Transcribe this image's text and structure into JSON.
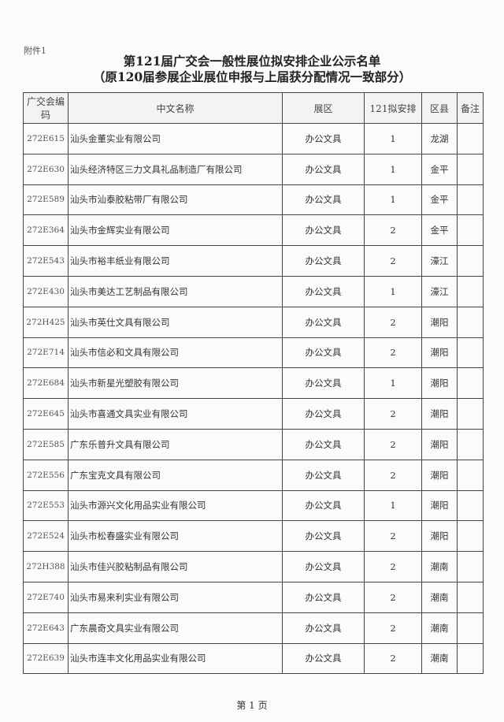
{
  "attachment": "附件1",
  "title": "第121届广交会一般性展位拟安排企业公示名单",
  "subtitle": "（原120届参展企业展位申报与上届获分配情况一致部分）",
  "headers": {
    "code": "广交会编码",
    "name": "中文名称",
    "zone": "展区",
    "plan": "121拟安排",
    "district": "区县",
    "note": "备注"
  },
  "rows": [
    {
      "code": "272E615",
      "name": "汕头金董实业有限公司",
      "zone": "办公文具",
      "plan": "1",
      "district": "龙湖",
      "note": ""
    },
    {
      "code": "272E630",
      "name": "汕头经济特区三力文具礼品制造厂有限公司",
      "zone": "办公文具",
      "plan": "1",
      "district": "金平",
      "note": ""
    },
    {
      "code": "272E589",
      "name": "汕头市汕泰胶粘带厂有限公司",
      "zone": "办公文具",
      "plan": "1",
      "district": "金平",
      "note": ""
    },
    {
      "code": "272E364",
      "name": "汕头市金辉实业有限公司",
      "zone": "办公文具",
      "plan": "2",
      "district": "金平",
      "note": ""
    },
    {
      "code": "272E543",
      "name": "汕头市裕丰纸业有限公司",
      "zone": "办公文具",
      "plan": "2",
      "district": "濠江",
      "note": ""
    },
    {
      "code": "272E430",
      "name": "汕头市美达工艺制品有限公司",
      "zone": "办公文具",
      "plan": "1",
      "district": "濠江",
      "note": ""
    },
    {
      "code": "272H425",
      "name": "汕头市英仕文具有限公司",
      "zone": "办公文具",
      "plan": "2",
      "district": "潮阳",
      "note": ""
    },
    {
      "code": "272E714",
      "name": "汕头市信必和文具有限公司",
      "zone": "办公文具",
      "plan": "2",
      "district": "潮阳",
      "note": ""
    },
    {
      "code": "272E684",
      "name": "汕头市新星光塑胶有限公司",
      "zone": "办公文具",
      "plan": "1",
      "district": "潮阳",
      "note": ""
    },
    {
      "code": "272E645",
      "name": "汕头市喜通文具实业有限公司",
      "zone": "办公文具",
      "plan": "2",
      "district": "潮阳",
      "note": ""
    },
    {
      "code": "272E585",
      "name": "广东乐普升文具有限公司",
      "zone": "办公文具",
      "plan": "2",
      "district": "潮阳",
      "note": ""
    },
    {
      "code": "272E556",
      "name": "广东宝克文具有限公司",
      "zone": "办公文具",
      "plan": "2",
      "district": "潮阳",
      "note": ""
    },
    {
      "code": "272E553",
      "name": "汕头市源兴文化用品实业有限公司",
      "zone": "办公文具",
      "plan": "1",
      "district": "潮阳",
      "note": ""
    },
    {
      "code": "272E524",
      "name": "汕头市松春盛实业有限公司",
      "zone": "办公文具",
      "plan": "2",
      "district": "潮阳",
      "note": ""
    },
    {
      "code": "272H388",
      "name": "汕头市佳兴胶粘制品有限公司",
      "zone": "办公文具",
      "plan": "2",
      "district": "潮南",
      "note": ""
    },
    {
      "code": "272E740",
      "name": "汕头市易来利实业有限公司",
      "zone": "办公文具",
      "plan": "2",
      "district": "潮南",
      "note": ""
    },
    {
      "code": "272E643",
      "name": "广东晨奇文具实业有限公司",
      "zone": "办公文具",
      "plan": "2",
      "district": "潮南",
      "note": ""
    },
    {
      "code": "272E639",
      "name": "汕头市连丰文化用品实业有限公司",
      "zone": "办公文具",
      "plan": "2",
      "district": "潮南",
      "note": ""
    }
  ],
  "footer": "第 1 页"
}
